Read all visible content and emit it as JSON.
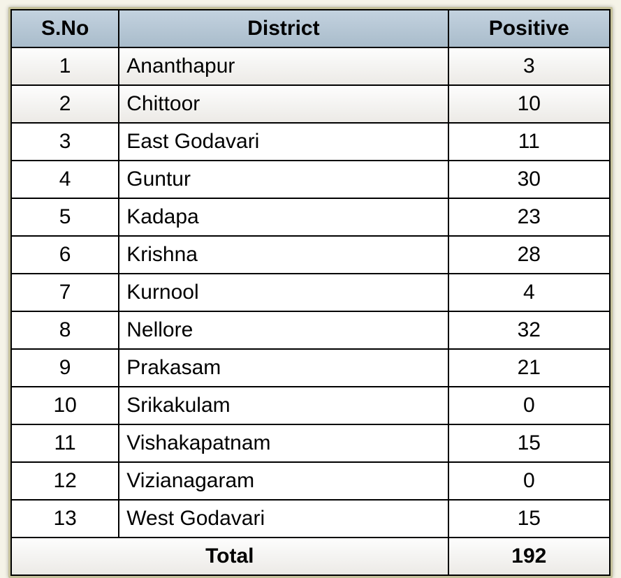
{
  "table": {
    "columns": [
      "S.No",
      "District",
      "Positive"
    ],
    "rows": [
      {
        "sno": "1",
        "district": "Ananthapur",
        "positive": "3"
      },
      {
        "sno": "2",
        "district": "Chittoor",
        "positive": "10"
      },
      {
        "sno": "3",
        "district": "East Godavari",
        "positive": "11"
      },
      {
        "sno": "4",
        "district": "Guntur",
        "positive": "30"
      },
      {
        "sno": "5",
        "district": "Kadapa",
        "positive": "23"
      },
      {
        "sno": "6",
        "district": "Krishna",
        "positive": "28"
      },
      {
        "sno": "7",
        "district": "Kurnool",
        "positive": "4"
      },
      {
        "sno": "8",
        "district": "Nellore",
        "positive": "32"
      },
      {
        "sno": "9",
        "district": "Prakasam",
        "positive": "21"
      },
      {
        "sno": "10",
        "district": "Srikakulam",
        "positive": "0"
      },
      {
        "sno": "11",
        "district": "Vishakapatnam",
        "positive": "15"
      },
      {
        "sno": "12",
        "district": "Vizianagaram",
        "positive": "0"
      },
      {
        "sno": "13",
        "district": "West Godavari",
        "positive": "15"
      }
    ],
    "total_label": "Total",
    "total_value": "192",
    "header_bg_top": "#c3d2df",
    "header_bg_bottom": "#a9bccb",
    "border_color": "#000000",
    "font_size": 30
  }
}
